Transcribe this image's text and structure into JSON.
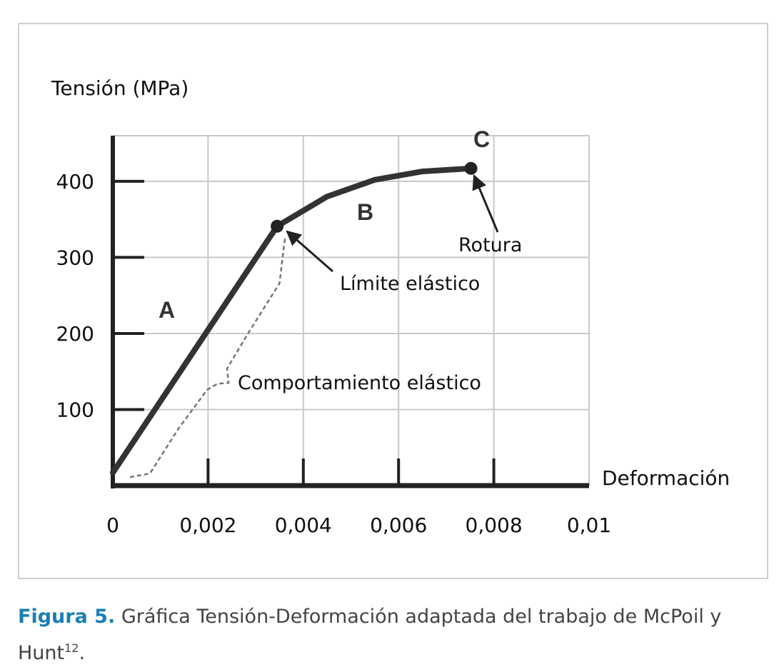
{
  "chart_data": {
    "type": "line",
    "title": "",
    "ylabel": "Tensión (MPa)",
    "xlabel": "Deformación",
    "xlim": [
      0,
      0.01
    ],
    "ylim": [
      0,
      460
    ],
    "x_ticks": [
      0,
      0.002,
      0.004,
      0.006,
      0.008,
      0.01
    ],
    "x_tick_labels": [
      "0",
      "0,002",
      "0,004",
      "0,006",
      "0,008",
      "0,01"
    ],
    "y_ticks": [
      100,
      200,
      300,
      400
    ],
    "y_tick_labels": [
      "100",
      "200",
      "300",
      "400"
    ],
    "grid": true,
    "series": [
      {
        "style": "solid",
        "color": "#333333",
        "x": [
          0,
          0.00345,
          0.0045,
          0.0055,
          0.0065,
          0.00752
        ],
        "y": [
          17,
          341,
          380,
          402,
          413,
          417
        ]
      },
      {
        "style": "dashed",
        "color": "#777777",
        "x": [
          0.00036,
          0.00078,
          0.00138,
          0.00198,
          0.0022,
          0.00243,
          0.0024,
          0.0028,
          0.0035,
          0.00359,
          0.00362
        ],
        "y": [
          11,
          16,
          75,
          126,
          134,
          135,
          154,
          196,
          266,
          313,
          327
        ]
      }
    ],
    "points": [
      {
        "x": 0.00345,
        "y": 341
      },
      {
        "x": 0.00752,
        "y": 417
      }
    ],
    "annotations": {
      "region_a": "A",
      "region_b": "B",
      "region_c": "C",
      "yield": "Límite elástico",
      "rupture": "Rotura",
      "elastic": "Comportamiento elástico"
    }
  },
  "caption": {
    "figure": "Figura 5.",
    "text": " Gráfica Tensión-Deformación adaptada del trabajo de McPoil y Hunt",
    "ref": "12",
    "end": "."
  }
}
